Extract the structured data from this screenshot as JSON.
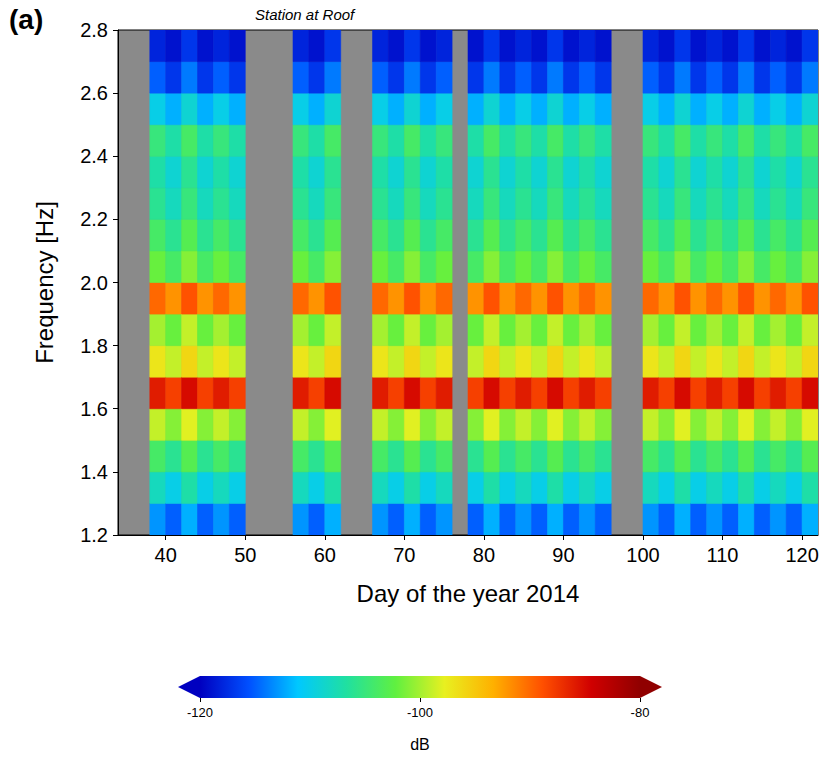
{
  "chart_data": {
    "type": "heatmap",
    "title": "Station at Roof",
    "panel_label": "(a)",
    "x_label": "Day of the year 2014",
    "y_label": "Frequency [Hz]",
    "xlim": [
      34,
      122
    ],
    "xticks": [
      40,
      50,
      60,
      70,
      80,
      90,
      100,
      110,
      120
    ],
    "ylim": [
      1.2,
      2.8
    ],
    "yticks": [
      1.2,
      1.4,
      1.6,
      1.8,
      {
        "value": 2,
        "label": "2.0"
      },
      2.2,
      2.4,
      2.6,
      2.8
    ],
    "grid": false,
    "x": [
      35,
      37,
      39,
      41,
      43,
      45,
      47,
      49,
      51,
      53,
      55,
      57,
      59,
      61,
      63,
      65,
      67,
      69,
      71,
      73,
      75,
      77,
      79,
      81,
      83,
      85,
      87,
      89,
      91,
      93,
      95,
      97,
      99,
      101,
      103,
      105,
      107,
      109,
      111,
      113,
      115,
      117,
      119,
      121
    ],
    "y": [
      1.25,
      1.35,
      1.45,
      1.55,
      1.65,
      1.75,
      1.85,
      1.95,
      2.05,
      2.15,
      2.25,
      2.35,
      2.45,
      2.55,
      2.65,
      2.75
    ],
    "cells": [
      null,
      null,
      [
        -113,
        -108,
        -104,
        -99,
        -86,
        -97,
        -100,
        -90,
        -102,
        -104,
        -106,
        -107,
        -105,
        -110,
        -115,
        -118
      ],
      [
        -115,
        -110,
        -106,
        -101,
        -88,
        -99,
        -102,
        -92,
        -104,
        -106,
        -108,
        -109,
        -107,
        -112,
        -117,
        -119
      ],
      [
        -112,
        -107,
        -103,
        -98,
        -85,
        -96,
        -99,
        -89,
        -101,
        -103,
        -105,
        -106,
        -104,
        -109,
        -114,
        -117
      ],
      [
        -115,
        -110,
        -106,
        -101,
        -88,
        -99,
        -102,
        -92,
        -104,
        -106,
        -108,
        -109,
        -107,
        -112,
        -117,
        -119
      ],
      [
        -113,
        -108,
        -104,
        -99,
        -86,
        -97,
        -100,
        -90,
        -102,
        -104,
        -106,
        -107,
        -105,
        -110,
        -115,
        -118
      ],
      [
        -115,
        -110,
        -106,
        -101,
        -88,
        -99,
        -102,
        -92,
        -104,
        -106,
        -108,
        -109,
        -107,
        -112,
        -117,
        -119
      ],
      null,
      null,
      null,
      [
        -113,
        -108,
        -104,
        -99,
        -86,
        -97,
        -100,
        -90,
        -102,
        -104,
        -106,
        -107,
        -105,
        -110,
        -115,
        -118
      ],
      [
        -115,
        -110,
        -106,
        -101,
        -88,
        -99,
        -102,
        -92,
        -104,
        -106,
        -108,
        -109,
        -107,
        -112,
        -117,
        -119
      ],
      [
        -112,
        -107,
        -103,
        -98,
        -85,
        -96,
        -99,
        -89,
        -101,
        -103,
        -105,
        -106,
        -104,
        -109,
        -114,
        -117
      ],
      null,
      null,
      [
        -113,
        -108,
        -104,
        -99,
        -86,
        -97,
        -100,
        -90,
        -102,
        -104,
        -106,
        -107,
        -105,
        -110,
        -115,
        -118
      ],
      [
        -115,
        -110,
        -106,
        -101,
        -88,
        -99,
        -102,
        -92,
        -104,
        -106,
        -108,
        -109,
        -107,
        -112,
        -117,
        -119
      ],
      [
        -112,
        -107,
        -103,
        -98,
        -85,
        -96,
        -99,
        -89,
        -101,
        -103,
        -105,
        -106,
        -104,
        -109,
        -114,
        -117
      ],
      [
        -115,
        -110,
        -106,
        -101,
        -88,
        -99,
        -102,
        -92,
        -104,
        -106,
        -108,
        -109,
        -107,
        -112,
        -117,
        -119
      ],
      [
        -113,
        -108,
        -104,
        -99,
        -86,
        -97,
        -100,
        -90,
        -102,
        -104,
        -106,
        -107,
        -105,
        -110,
        -115,
        -118
      ],
      null,
      [
        -115,
        -110,
        -106,
        -101,
        -88,
        -99,
        -102,
        -92,
        -104,
        -106,
        -108,
        -109,
        -107,
        -112,
        -117,
        -119
      ],
      [
        -112,
        -107,
        -103,
        -98,
        -85,
        -96,
        -99,
        -89,
        -101,
        -103,
        -105,
        -106,
        -104,
        -109,
        -114,
        -117
      ],
      [
        -115,
        -110,
        -106,
        -101,
        -88,
        -99,
        -102,
        -92,
        -104,
        -106,
        -108,
        -109,
        -107,
        -112,
        -117,
        -119
      ],
      [
        -113,
        -108,
        -104,
        -99,
        -86,
        -97,
        -100,
        -90,
        -102,
        -104,
        -106,
        -107,
        -105,
        -110,
        -115,
        -118
      ],
      [
        -115,
        -110,
        -106,
        -101,
        -88,
        -99,
        -102,
        -92,
        -104,
        -106,
        -108,
        -109,
        -107,
        -112,
        -117,
        -119
      ],
      [
        -112,
        -107,
        -103,
        -98,
        -85,
        -96,
        -99,
        -89,
        -101,
        -103,
        -105,
        -106,
        -104,
        -109,
        -114,
        -117
      ],
      [
        -115,
        -110,
        -106,
        -101,
        -88,
        -99,
        -102,
        -92,
        -104,
        -106,
        -108,
        -109,
        -107,
        -112,
        -117,
        -119
      ],
      [
        -113,
        -108,
        -104,
        -99,
        -86,
        -97,
        -100,
        -90,
        -102,
        -104,
        -106,
        -107,
        -105,
        -110,
        -115,
        -118
      ],
      [
        -115,
        -110,
        -106,
        -101,
        -88,
        -99,
        -102,
        -92,
        -104,
        -106,
        -108,
        -109,
        -107,
        -112,
        -117,
        -119
      ],
      null,
      null,
      [
        -113,
        -108,
        -104,
        -99,
        -86,
        -97,
        -100,
        -90,
        -102,
        -104,
        -106,
        -107,
        -105,
        -110,
        -115,
        -118
      ],
      [
        -115,
        -110,
        -106,
        -101,
        -88,
        -99,
        -102,
        -92,
        -104,
        -106,
        -108,
        -109,
        -107,
        -112,
        -117,
        -119
      ],
      [
        -112,
        -107,
        -103,
        -98,
        -85,
        -96,
        -99,
        -89,
        -101,
        -103,
        -105,
        -106,
        -104,
        -109,
        -114,
        -117
      ],
      [
        -115,
        -110,
        -106,
        -101,
        -88,
        -99,
        -102,
        -92,
        -104,
        -106,
        -108,
        -109,
        -107,
        -112,
        -117,
        -119
      ],
      [
        -113,
        -108,
        -104,
        -99,
        -86,
        -97,
        -100,
        -90,
        -102,
        -104,
        -106,
        -107,
        -105,
        -110,
        -115,
        -118
      ],
      [
        -115,
        -110,
        -106,
        -101,
        -88,
        -99,
        -102,
        -92,
        -104,
        -106,
        -108,
        -109,
        -107,
        -112,
        -117,
        -119
      ],
      [
        -112,
        -107,
        -103,
        -98,
        -85,
        -96,
        -99,
        -89,
        -101,
        -103,
        -105,
        -106,
        -104,
        -109,
        -114,
        -117
      ],
      [
        -115,
        -110,
        -106,
        -101,
        -88,
        -99,
        -102,
        -92,
        -104,
        -106,
        -108,
        -109,
        -107,
        -112,
        -117,
        -119
      ],
      [
        -113,
        -108,
        -104,
        -99,
        -86,
        -97,
        -100,
        -90,
        -102,
        -104,
        -106,
        -107,
        -105,
        -110,
        -115,
        -118
      ],
      [
        -115,
        -110,
        -106,
        -101,
        -88,
        -99,
        -102,
        -92,
        -104,
        -106,
        -108,
        -109,
        -107,
        -112,
        -117,
        -119
      ],
      [
        -112,
        -107,
        -103,
        -98,
        -85,
        -96,
        -99,
        -89,
        -101,
        -103,
        -105,
        -106,
        -104,
        -109,
        -114,
        -117
      ]
    ],
    "colorbar": {
      "label": "dB",
      "range": [
        -120,
        -80
      ],
      "ticks": [
        -120,
        -100,
        -80
      ]
    }
  }
}
